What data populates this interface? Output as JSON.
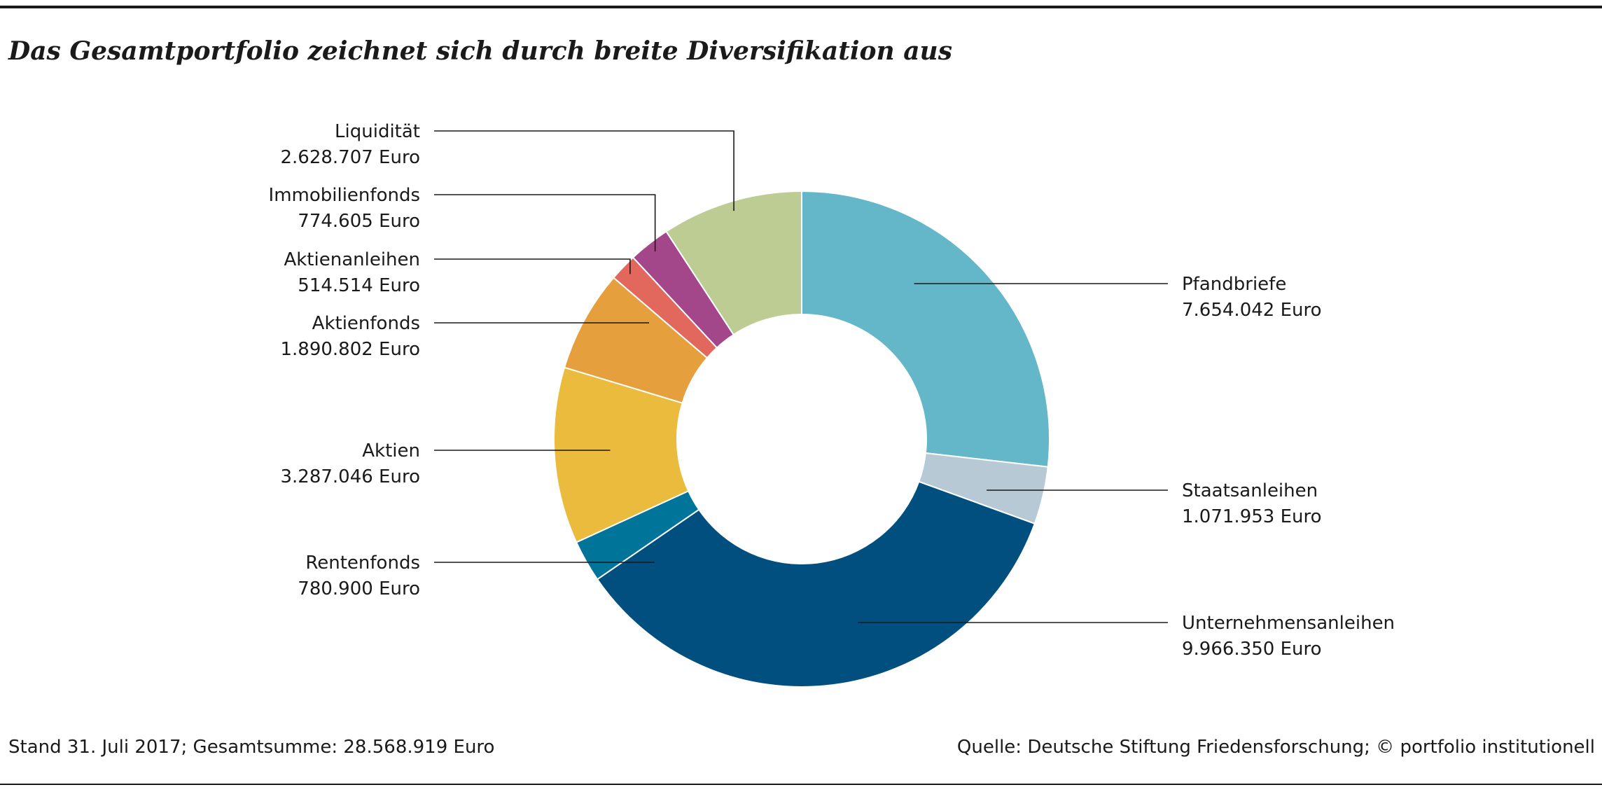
{
  "header": {
    "title": "Das Gesamtportfolio zeichnet sich durch breite Diversifikation aus"
  },
  "footer": {
    "left": "Stand 31. Juli 2017; Gesamtsumme: 28.568.919 Euro",
    "right": "Quelle: Deutsche Stiftung Friedensforschung; © portfolio institutionell"
  },
  "chart_data": {
    "type": "pie",
    "variant": "donut",
    "title": "Das Gesamtportfolio zeichnet sich durch breite Diversifikation aus",
    "total_label": "Gesamtsumme: 28.568.919 Euro",
    "legend": "labels-with-leader-lines",
    "slices": [
      {
        "name": "Pfandbriefe",
        "value": 7654042,
        "value_label": "7.654.042 Euro",
        "color": "#63b7c8"
      },
      {
        "name": "Staatsanleihen",
        "value": 1071953,
        "value_label": "1.071.953 Euro",
        "color": "#b8c9d6"
      },
      {
        "name": "Unternehmensanleihen",
        "value": 9966350,
        "value_label": "9.966.350 Euro",
        "color": "#004f7e"
      },
      {
        "name": "Rentenfonds",
        "value": 780900,
        "value_label": "780.900 Euro",
        "color": "#007599"
      },
      {
        "name": "Aktien",
        "value": 3287046,
        "value_label": "3.287.046 Euro",
        "color": "#ebbb3e"
      },
      {
        "name": "Aktienfonds",
        "value": 1890802,
        "value_label": "1.890.802 Euro",
        "color": "#e69f3d"
      },
      {
        "name": "Aktienanleihen",
        "value": 514514,
        "value_label": "514.514 Euro",
        "color": "#e2675d"
      },
      {
        "name": "Immobilienfonds",
        "value": 774605,
        "value_label": "774.605 Euro",
        "color": "#a4468a"
      },
      {
        "name": "Liquidität",
        "value": 2628707,
        "value_label": "2.628.707 Euro",
        "color": "#bccc93"
      }
    ]
  }
}
